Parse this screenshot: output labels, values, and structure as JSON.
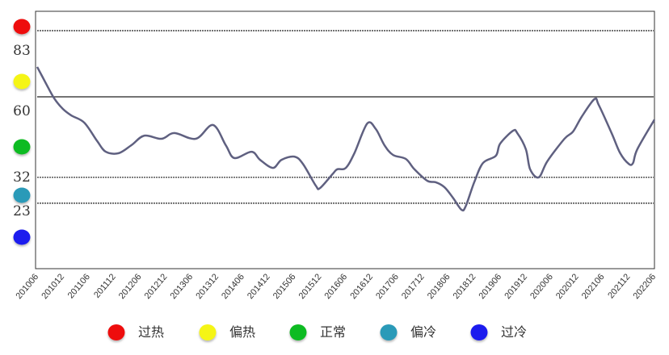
{
  "chart_data": {
    "type": "line",
    "title": "",
    "xlabel": "",
    "ylabel": "",
    "ylim": [
      0,
      90
    ],
    "grid": false,
    "legend_placement": "bottom",
    "line_color": "#5f6080",
    "x_tick_labels": [
      "201006",
      "201012",
      "201106",
      "201112",
      "201206",
      "201212",
      "201306",
      "201312",
      "201406",
      "201412",
      "201506",
      "201512",
      "201606",
      "201612",
      "201706",
      "201712",
      "201806",
      "201812",
      "201906",
      "201912",
      "202006",
      "202012",
      "202106",
      "202112",
      "202206"
    ],
    "thresholds": [
      {
        "value": 83,
        "label": "83",
        "style": "dashed"
      },
      {
        "value": 60,
        "label": "60",
        "style": "solid"
      },
      {
        "value": 32,
        "label": "32",
        "style": "dashed"
      },
      {
        "value": 23,
        "label": "23",
        "style": "dashed"
      }
    ],
    "zones": [
      {
        "name": "过热",
        "color": "#ee1111"
      },
      {
        "name": "偏热",
        "color": "#f5f516"
      },
      {
        "name": "正常",
        "color": "#11bb22"
      },
      {
        "name": "偏冷",
        "color": "#2a9ab8"
      },
      {
        "name": "过冷",
        "color": "#1a1aee"
      }
    ],
    "series": [
      {
        "x": [
          "2010-06",
          "2010-08",
          "2010-10",
          "2010-12",
          "2011-02",
          "2011-05",
          "2011-08",
          "2011-10",
          "2012-01",
          "2012-04",
          "2012-07",
          "2012-11",
          "2013-02",
          "2013-07",
          "2013-11",
          "2014-02",
          "2014-04",
          "2014-08",
          "2014-10",
          "2015-01",
          "2015-03",
          "2015-06",
          "2015-08",
          "2015-11",
          "2015-12",
          "2016-03",
          "2016-04",
          "2016-06",
          "2016-08",
          "2016-11",
          "2017-01",
          "2017-03",
          "2017-05",
          "2017-08",
          "2017-10",
          "2018-01",
          "2018-03",
          "2018-05",
          "2018-07",
          "2018-09",
          "2018-10",
          "2018-12",
          "2019-02",
          "2019-05",
          "2019-06",
          "2019-09",
          "2019-10",
          "2019-12",
          "2020-01",
          "2020-03",
          "2020-05",
          "2020-09",
          "2020-11",
          "2021-01",
          "2021-04",
          "2021-05",
          "2021-08",
          "2021-10",
          "2021-12",
          "2022-01",
          "2022-02",
          "2022-06"
        ],
        "values": [
          70.4,
          64.8,
          59.4,
          55.8,
          53.5,
          51.0,
          44.6,
          40.9,
          40.4,
          43.2,
          46.5,
          45.4,
          47.4,
          45.4,
          50.2,
          43.2,
          38.7,
          40.9,
          38.1,
          35.3,
          38.1,
          39.2,
          36.7,
          29.1,
          28.3,
          33.3,
          34.8,
          35.3,
          40.4,
          50.7,
          48.8,
          43.2,
          39.8,
          38.4,
          34.8,
          30.8,
          30.3,
          28.6,
          24.9,
          20.7,
          22.1,
          30.5,
          37.0,
          39.5,
          43.7,
          48.2,
          47.4,
          41.8,
          34.8,
          32.0,
          37.6,
          45.4,
          47.9,
          53.0,
          59.2,
          57.2,
          47.4,
          40.4,
          36.7,
          37.0,
          41.8,
          52.1
        ]
      }
    ]
  }
}
